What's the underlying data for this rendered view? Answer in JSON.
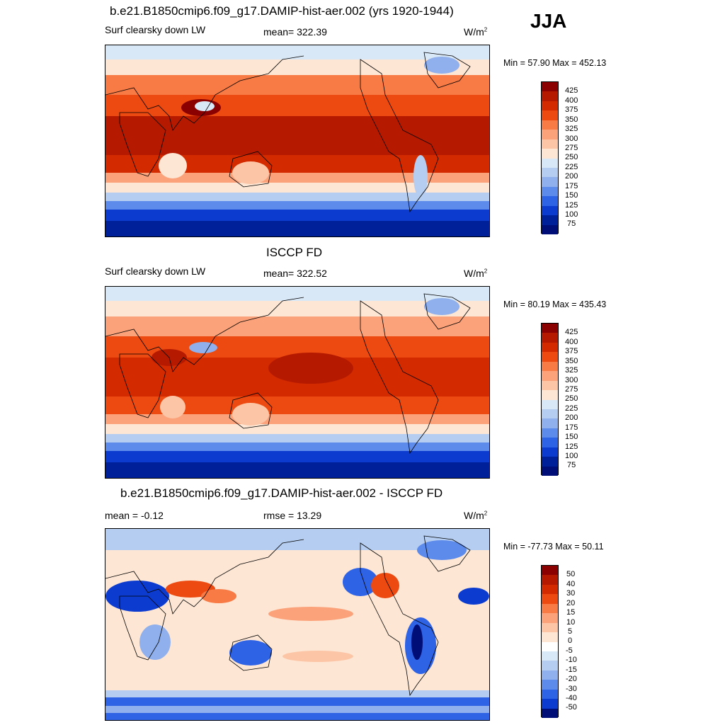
{
  "season": "JJA",
  "panels": [
    {
      "title": "b.e21.B1850cmip6.f09_g17.DAMIP-hist-aer.002 (yrs 1920-1944)",
      "left_text": "Surf clearsky down LW",
      "center_text": "mean= 322.39",
      "units": "W/m",
      "units_sup": "2",
      "minmax": "Min =  57.90 Max = 452.13",
      "kind": "abs",
      "colorbar_labels": [
        "425",
        "400",
        "375",
        "350",
        "325",
        "300",
        "275",
        "250",
        "225",
        "200",
        "175",
        "150",
        "125",
        "100",
        "75"
      ]
    },
    {
      "title": "ISCCP FD",
      "left_text": "Surf clearsky down LW",
      "center_text": "mean= 322.52",
      "units": "W/m",
      "units_sup": "2",
      "minmax": "Min =  80.19 Max = 435.43",
      "kind": "abs",
      "colorbar_labels": [
        "425",
        "400",
        "375",
        "350",
        "325",
        "300",
        "275",
        "250",
        "225",
        "200",
        "175",
        "150",
        "125",
        "100",
        "75"
      ]
    },
    {
      "title": "b.e21.B1850cmip6.f09_g17.DAMIP-hist-aer.002 - ISCCP FD",
      "left_text": "mean =  -0.12",
      "center_text": "rmse =  13.29",
      "units": "W/m",
      "units_sup": "2",
      "minmax": "Min = -77.73 Max =  50.11",
      "kind": "diff",
      "colorbar_labels": [
        "50",
        "40",
        "30",
        "20",
        "15",
        "10",
        "5",
        "0",
        "-5",
        "-10",
        "-15",
        "-20",
        "-30",
        "-40",
        "-50"
      ]
    }
  ],
  "colors": {
    "abs_scale": [
      "#8b0000",
      "#b51a00",
      "#d42a00",
      "#ec4a10",
      "#f87a45",
      "#fca27a",
      "#fcc6a6",
      "#fde6d4",
      "#d9e8f7",
      "#b5cdf0",
      "#8fb0ec",
      "#5d8bec",
      "#2f63e6",
      "#0b3ccf",
      "#00209a",
      "#000f78"
    ],
    "diff_scale": [
      "#8b0000",
      "#b51a00",
      "#d42a00",
      "#ec4a10",
      "#f87a45",
      "#fca27a",
      "#fcc6a6",
      "#fde6d4",
      "#ffffff",
      "#d9e8f7",
      "#b5cdf0",
      "#8fb0ec",
      "#5d8bec",
      "#2f63e6",
      "#0b3ccf",
      "#000f78"
    ]
  }
}
